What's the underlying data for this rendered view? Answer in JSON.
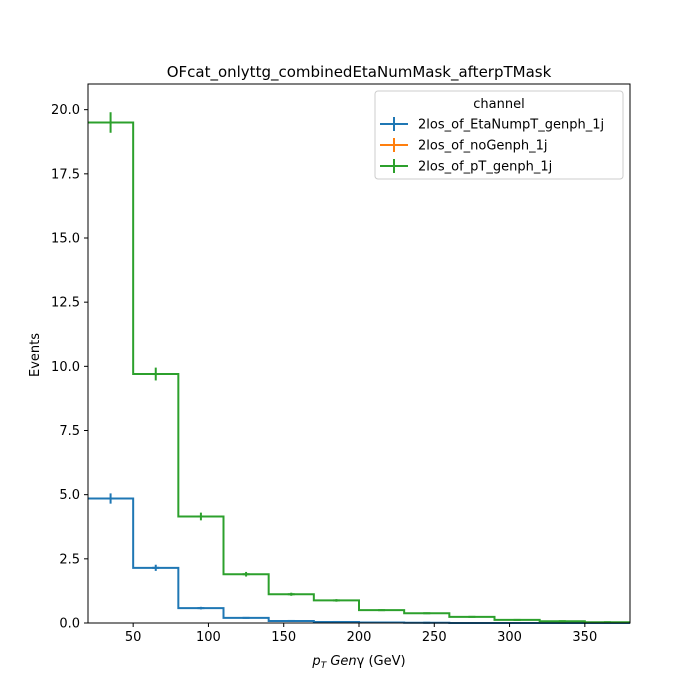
{
  "chart_data": {
    "type": "histogram-step",
    "title": "OFcat_onlyttg_combinedEtaNumMask_afterpTMask",
    "xlabel": "p_T Genγ (GeV)",
    "ylabel": "Events",
    "xlim": [
      20,
      380
    ],
    "ylim": [
      0,
      21
    ],
    "x_ticks": [
      50,
      100,
      150,
      200,
      250,
      300,
      350
    ],
    "y_ticks": [
      "0.0",
      "2.5",
      "5.0",
      "7.5",
      "10.0",
      "12.5",
      "15.0",
      "17.5",
      "20.0"
    ],
    "bin_edges": [
      20,
      50,
      80,
      110,
      140,
      170,
      200,
      230,
      260,
      290,
      320,
      350,
      380
    ],
    "legend": {
      "title": "channel",
      "placement": "top-right"
    },
    "series": [
      {
        "name": "2los_of_EtaNumpT_genph_1j",
        "color": "#1f77b4",
        "values": [
          4.85,
          2.15,
          0.58,
          0.2,
          0.08,
          0.04,
          0.02,
          0.01,
          0.0,
          0.0,
          0.0,
          0.0
        ],
        "errors": [
          0.2,
          0.12,
          0.05,
          0.03,
          0.02,
          0.01,
          0.01,
          0.01,
          0.0,
          0.0,
          0.0,
          0.0
        ]
      },
      {
        "name": "2los_of_noGenph_1j",
        "color": "#ff7f0e",
        "values": [],
        "errors": []
      },
      {
        "name": "2los_of_pT_genph_1j",
        "color": "#2ca02c",
        "values": [
          19.5,
          9.7,
          4.15,
          1.9,
          1.12,
          0.88,
          0.5,
          0.38,
          0.24,
          0.12,
          0.07,
          0.03
        ],
        "errors": [
          0.4,
          0.25,
          0.15,
          0.09,
          0.06,
          0.05,
          0.03,
          0.03,
          0.02,
          0.01,
          0.01,
          0.01
        ]
      }
    ]
  }
}
